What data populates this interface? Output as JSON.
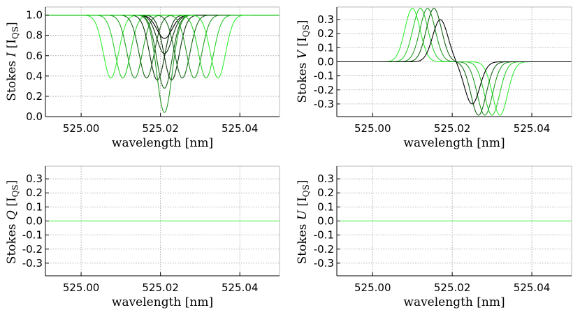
{
  "chart_data": [
    {
      "type": "line",
      "panel": "I",
      "xlabel": "wavelength [nm]",
      "ylabel": {
        "prefix": "Stokes",
        "symbol": "I",
        "unit_main": "[I",
        "unit_sub": "QS",
        "unit_close": "]"
      },
      "xlim": [
        524.991,
        525.05
      ],
      "ylim": [
        0.0,
        1.08
      ],
      "xticks": [
        "525.00",
        "525.02",
        "525.04"
      ],
      "xtick_values": [
        525.0,
        525.02,
        525.04
      ],
      "yticks": [
        "0.0",
        "0.2",
        "0.4",
        "0.6",
        "0.8",
        "1.0"
      ],
      "ytick_values": [
        0.0,
        0.2,
        0.4,
        0.6,
        0.8,
        1.0
      ],
      "grid": true,
      "series": [
        {
          "shift": -0.0135,
          "center_depth": 0.38,
          "color": "#33ee33"
        },
        {
          "shift": -0.0105,
          "center_depth": 0.38,
          "color": "#2bcc2b"
        },
        {
          "shift": -0.0075,
          "center_depth": 0.38,
          "color": "#229922"
        },
        {
          "shift": -0.0045,
          "center_depth": 0.38,
          "color": "#176617"
        },
        {
          "shift": -0.0018,
          "center_depth": 0.36,
          "color": "#0c330c"
        },
        {
          "shift": 0.0,
          "center_depth": 0.77,
          "color": "#000000"
        },
        {
          "shift": 0.0,
          "center_depth": 0.62,
          "color": "#0c330c"
        },
        {
          "shift": 0.0,
          "center_depth": 0.28,
          "color": "#176617"
        },
        {
          "shift": 0.0,
          "center_depth": 0.04,
          "color": "#229922"
        },
        {
          "shift": 0.0018,
          "center_depth": 0.36,
          "color": "#0c330c"
        },
        {
          "shift": 0.0045,
          "center_depth": 0.38,
          "color": "#176617"
        },
        {
          "shift": 0.0075,
          "center_depth": 0.38,
          "color": "#229922"
        },
        {
          "shift": 0.0105,
          "center_depth": 0.38,
          "color": "#2bcc2b"
        },
        {
          "shift": 0.0135,
          "center_depth": 0.38,
          "color": "#33ee33"
        }
      ],
      "line_center": 525.021,
      "profile_width": 0.0027
    },
    {
      "type": "line",
      "panel": "V",
      "xlabel": "wavelength [nm]",
      "ylabel": {
        "prefix": "Stokes",
        "symbol": "V",
        "unit_main": "[I",
        "unit_sub": "QS",
        "unit_close": "]"
      },
      "xlim": [
        524.991,
        525.05
      ],
      "ylim": [
        -0.39,
        0.39
      ],
      "xticks": [
        "525.00",
        "525.02",
        "525.04"
      ],
      "xtick_values": [
        525.0,
        525.02,
        525.04
      ],
      "yticks": [
        "0.3",
        "0.2",
        "0.1",
        "0.0",
        "-0.1",
        "-0.2",
        "-0.3"
      ],
      "ytick_values": [
        0.3,
        0.2,
        0.1,
        0.0,
        -0.1,
        -0.2,
        -0.3
      ],
      "grid": true,
      "series": [
        {
          "lobe_center": 0.011,
          "amplitude": 0.38,
          "color": "#33ee33"
        },
        {
          "lobe_center": 0.009,
          "amplitude": 0.38,
          "color": "#2bcc2b"
        },
        {
          "lobe_center": 0.0072,
          "amplitude": 0.38,
          "color": "#229922"
        },
        {
          "lobe_center": 0.0056,
          "amplitude": 0.38,
          "color": "#176617"
        },
        {
          "lobe_center": 0.004,
          "amplitude": 0.3,
          "color": "#000000"
        }
      ],
      "line_center": 525.021,
      "lobe_width": 0.0027
    },
    {
      "type": "line",
      "panel": "Q",
      "xlabel": "wavelength [nm]",
      "ylabel": {
        "prefix": "Stokes",
        "symbol": "Q",
        "unit_main": "[I",
        "unit_sub": "QS",
        "unit_close": "]"
      },
      "xlim": [
        524.991,
        525.05
      ],
      "ylim": [
        -0.39,
        0.39
      ],
      "xticks": [
        "525.00",
        "525.02",
        "525.04"
      ],
      "xtick_values": [
        525.0,
        525.02,
        525.04
      ],
      "yticks": [
        "0.3",
        "0.2",
        "0.1",
        "0.0",
        "-0.1",
        "-0.2",
        "-0.3"
      ],
      "ytick_values": [
        0.3,
        0.2,
        0.1,
        0.0,
        -0.1,
        -0.2,
        -0.3
      ],
      "grid": true,
      "series": [
        {
          "values": "constant",
          "y": 0.0,
          "color": "#33ee33"
        }
      ]
    },
    {
      "type": "line",
      "panel": "U",
      "xlabel": "wavelength [nm]",
      "ylabel": {
        "prefix": "Stokes",
        "symbol": "U",
        "unit_main": "[I",
        "unit_sub": "QS",
        "unit_close": "]"
      },
      "xlim": [
        524.991,
        525.05
      ],
      "ylim": [
        -0.39,
        0.39
      ],
      "xticks": [
        "525.00",
        "525.02",
        "525.04"
      ],
      "xtick_values": [
        525.0,
        525.02,
        525.04
      ],
      "yticks": [
        "0.3",
        "0.2",
        "0.1",
        "0.0",
        "-0.1",
        "-0.2",
        "-0.3"
      ],
      "ytick_values": [
        0.3,
        0.2,
        0.1,
        0.0,
        -0.1,
        -0.2,
        -0.3
      ],
      "grid": true,
      "series": [
        {
          "values": "constant",
          "y": 0.0,
          "color": "#33ee33"
        }
      ]
    }
  ]
}
